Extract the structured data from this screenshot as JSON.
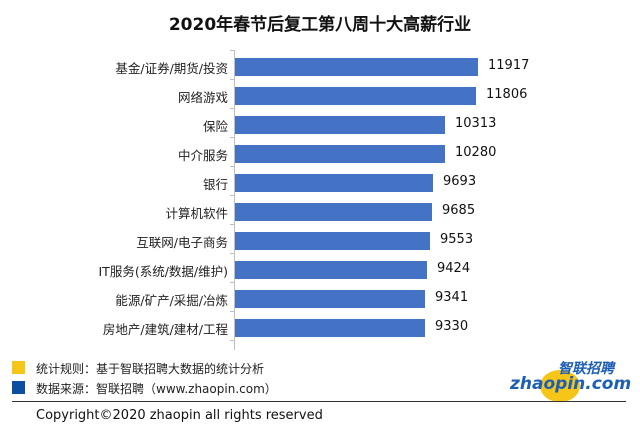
{
  "chart_data": {
    "type": "bar",
    "orientation": "horizontal",
    "title": "2020年春节后复工第八周十大高薪行业",
    "xlabel": "",
    "ylabel": "",
    "xlim": [
      0,
      12500
    ],
    "grid": false,
    "legend_position": "none",
    "categories": [
      "基金/证券/期货/投资",
      "网络游戏",
      "保险",
      "中介服务",
      "银行",
      "计算机软件",
      "互联网/电子商务",
      "IT服务(系统/数据/维护)",
      "能源/矿产/采掘/冶炼",
      "房地产/建筑/建材/工程"
    ],
    "values": [
      11917,
      11806,
      10313,
      10280,
      9693,
      9685,
      9553,
      9424,
      9341,
      9330
    ],
    "bar_color": "#4472c4"
  },
  "labels": {
    "v0": "11917",
    "v1": "11806",
    "v2": "10313",
    "v3": "10280",
    "v4": "9693",
    "v5": "9685",
    "v6": "9553",
    "v7": "9424",
    "v8": "9341",
    "v9": "9330"
  },
  "legend": {
    "rule_color": "#f5c518",
    "rule_text": "统计规则：基于智联招聘大数据的统计分析",
    "source_color": "#0b4ea2",
    "source_text": "数据来源：智联招聘（www.zhaopin.com）"
  },
  "footer": {
    "copyright": "Copyright©2020 zhaopin all rights reserved"
  },
  "logo": {
    "cn": "智联招聘",
    "en": "zhaopin.com"
  }
}
